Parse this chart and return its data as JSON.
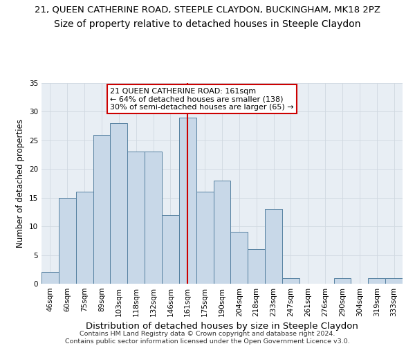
{
  "title1": "21, QUEEN CATHERINE ROAD, STEEPLE CLAYDON, BUCKINGHAM, MK18 2PZ",
  "title2": "Size of property relative to detached houses in Steeple Claydon",
  "xlabel": "Distribution of detached houses by size in Steeple Claydon",
  "ylabel": "Number of detached properties",
  "footnote": "Contains HM Land Registry data © Crown copyright and database right 2024.\nContains public sector information licensed under the Open Government Licence v3.0.",
  "categories": [
    "46sqm",
    "60sqm",
    "75sqm",
    "89sqm",
    "103sqm",
    "118sqm",
    "132sqm",
    "146sqm",
    "161sqm",
    "175sqm",
    "190sqm",
    "204sqm",
    "218sqm",
    "233sqm",
    "247sqm",
    "261sqm",
    "276sqm",
    "290sqm",
    "304sqm",
    "319sqm",
    "333sqm"
  ],
  "values": [
    2,
    15,
    16,
    26,
    28,
    23,
    23,
    12,
    29,
    16,
    18,
    9,
    6,
    13,
    1,
    0,
    0,
    1,
    0,
    1,
    1
  ],
  "bar_color": "#c8d8e8",
  "bar_edge_color": "#5580a0",
  "highlight_index": 8,
  "highlight_line_color": "#cc0000",
  "ylim": [
    0,
    35
  ],
  "yticks": [
    0,
    5,
    10,
    15,
    20,
    25,
    30,
    35
  ],
  "annotation_text": "21 QUEEN CATHERINE ROAD: 161sqm\n← 64% of detached houses are smaller (138)\n30% of semi-detached houses are larger (65) →",
  "annotation_box_color": "#ffffff",
  "annotation_box_edge": "#cc0000",
  "title1_fontsize": 9.5,
  "title2_fontsize": 10,
  "xlabel_fontsize": 9.5,
  "ylabel_fontsize": 8.5,
  "tick_fontsize": 7.5,
  "annot_fontsize": 8,
  "bg_color": "#e8eef4",
  "footnote_fontsize": 6.8
}
